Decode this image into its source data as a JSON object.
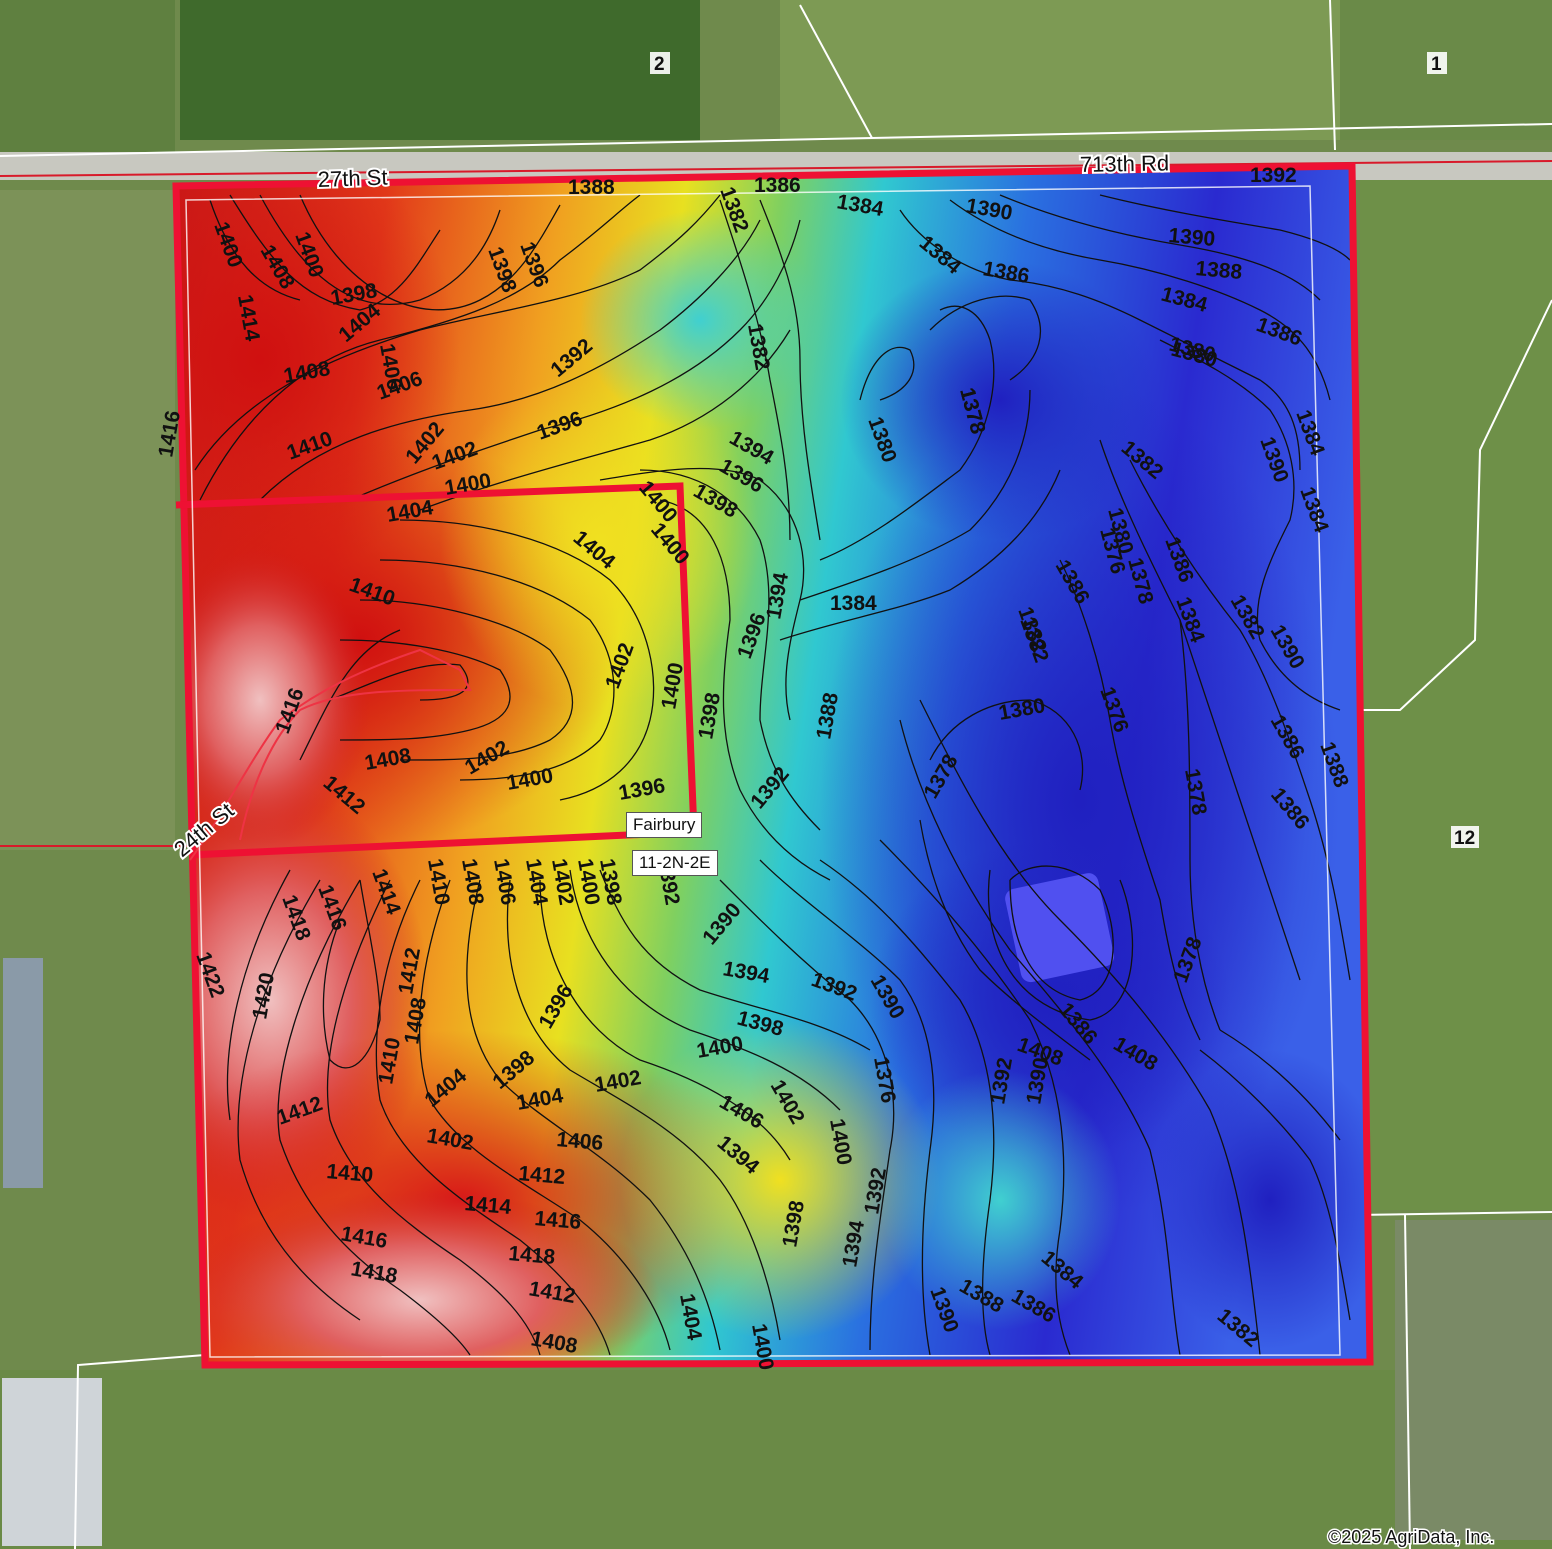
{
  "map": {
    "roads": {
      "north_west": "27th St",
      "north_east": "713th Rd",
      "west": "24th St"
    },
    "place": {
      "town": "Fairbury",
      "township": "11-2N-2E"
    },
    "sections": [
      "2",
      "1",
      "12"
    ],
    "copyright": "©2025 AgriData, Inc.",
    "colors": {
      "high_elevation": "#d81e1e",
      "mid_elevation": "#e8d800",
      "low_elevation": "#2a2ad8",
      "boundary": "#ee1133",
      "contour_line": "#111111"
    },
    "contour_labels": [
      "1388",
      "1386",
      "1384",
      "1390",
      "1392",
      "1390",
      "1388",
      "1384",
      "1386",
      "1382",
      "1384",
      "1386",
      "1400",
      "1414",
      "1398",
      "1404",
      "1408",
      "1406",
      "1400",
      "1398",
      "1396",
      "1392",
      "1396",
      "1416",
      "1410",
      "1402",
      "1400",
      "1380",
      "1378",
      "1382",
      "1384",
      "1382",
      "1380",
      "1394",
      "1396",
      "1398",
      "1400",
      "1404",
      "1404",
      "1410",
      "1408",
      "1406",
      "1402",
      "1402",
      "1400",
      "1400",
      "1398",
      "1396",
      "1394",
      "1388",
      "1384",
      "1382",
      "1380",
      "1378",
      "1386",
      "1384",
      "1382",
      "1380",
      "1376",
      "1386",
      "1388",
      "1390",
      "1386",
      "1384",
      "1416",
      "1412",
      "1408",
      "1402",
      "1400",
      "1396",
      "1392",
      "1390",
      "1386",
      "1380",
      "1376",
      "1378",
      "1382",
      "1378",
      "1378",
      "1418",
      "1416",
      "1414",
      "1410",
      "1408",
      "1406",
      "1404",
      "1402",
      "1400",
      "1398",
      "1392",
      "1390",
      "1394",
      "1392",
      "1390",
      "1422",
      "1420",
      "1412",
      "1410",
      "1408",
      "1404",
      "1398",
      "1396",
      "1398",
      "1400",
      "1402",
      "1412",
      "1402",
      "1404",
      "1406",
      "1402",
      "1406",
      "1400",
      "1394",
      "1376",
      "1378",
      "1386",
      "1408",
      "1408",
      "1410",
      "1412",
      "1414",
      "1416",
      "1418",
      "1416",
      "1418",
      "1412",
      "1408",
      "1404",
      "1400",
      "1398",
      "1394",
      "1392",
      "1390",
      "1388",
      "1386",
      "1384",
      "1392",
      "1390",
      "1382"
    ]
  }
}
